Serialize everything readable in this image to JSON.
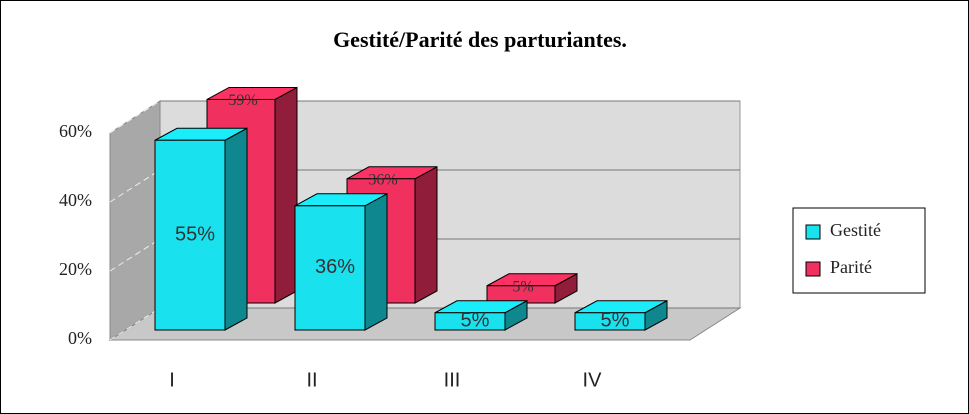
{
  "chart_data": {
    "type": "bar",
    "title": "Gestité/Parité des parturiantes.",
    "categories": [
      "I",
      "II",
      "III",
      "IV"
    ],
    "series": [
      {
        "name": "Gestité",
        "color": "#19e1ee",
        "values": [
          55,
          36,
          5,
          5
        ],
        "value_labels": [
          "55%",
          "36%",
          "5%",
          "5%"
        ]
      },
      {
        "name": "Parité",
        "color": "#f0305f",
        "values": [
          59,
          36,
          5,
          null
        ],
        "value_labels": [
          "59%",
          "36%",
          "5%",
          null
        ]
      }
    ],
    "ylim": [
      0,
      60
    ],
    "yticks": [
      {
        "value": 0,
        "label": "0%"
      },
      {
        "value": 20,
        "label": "20%"
      },
      {
        "value": 40,
        "label": "40%"
      },
      {
        "value": 60,
        "label": "60%"
      }
    ],
    "grid": true,
    "legend": "right"
  }
}
